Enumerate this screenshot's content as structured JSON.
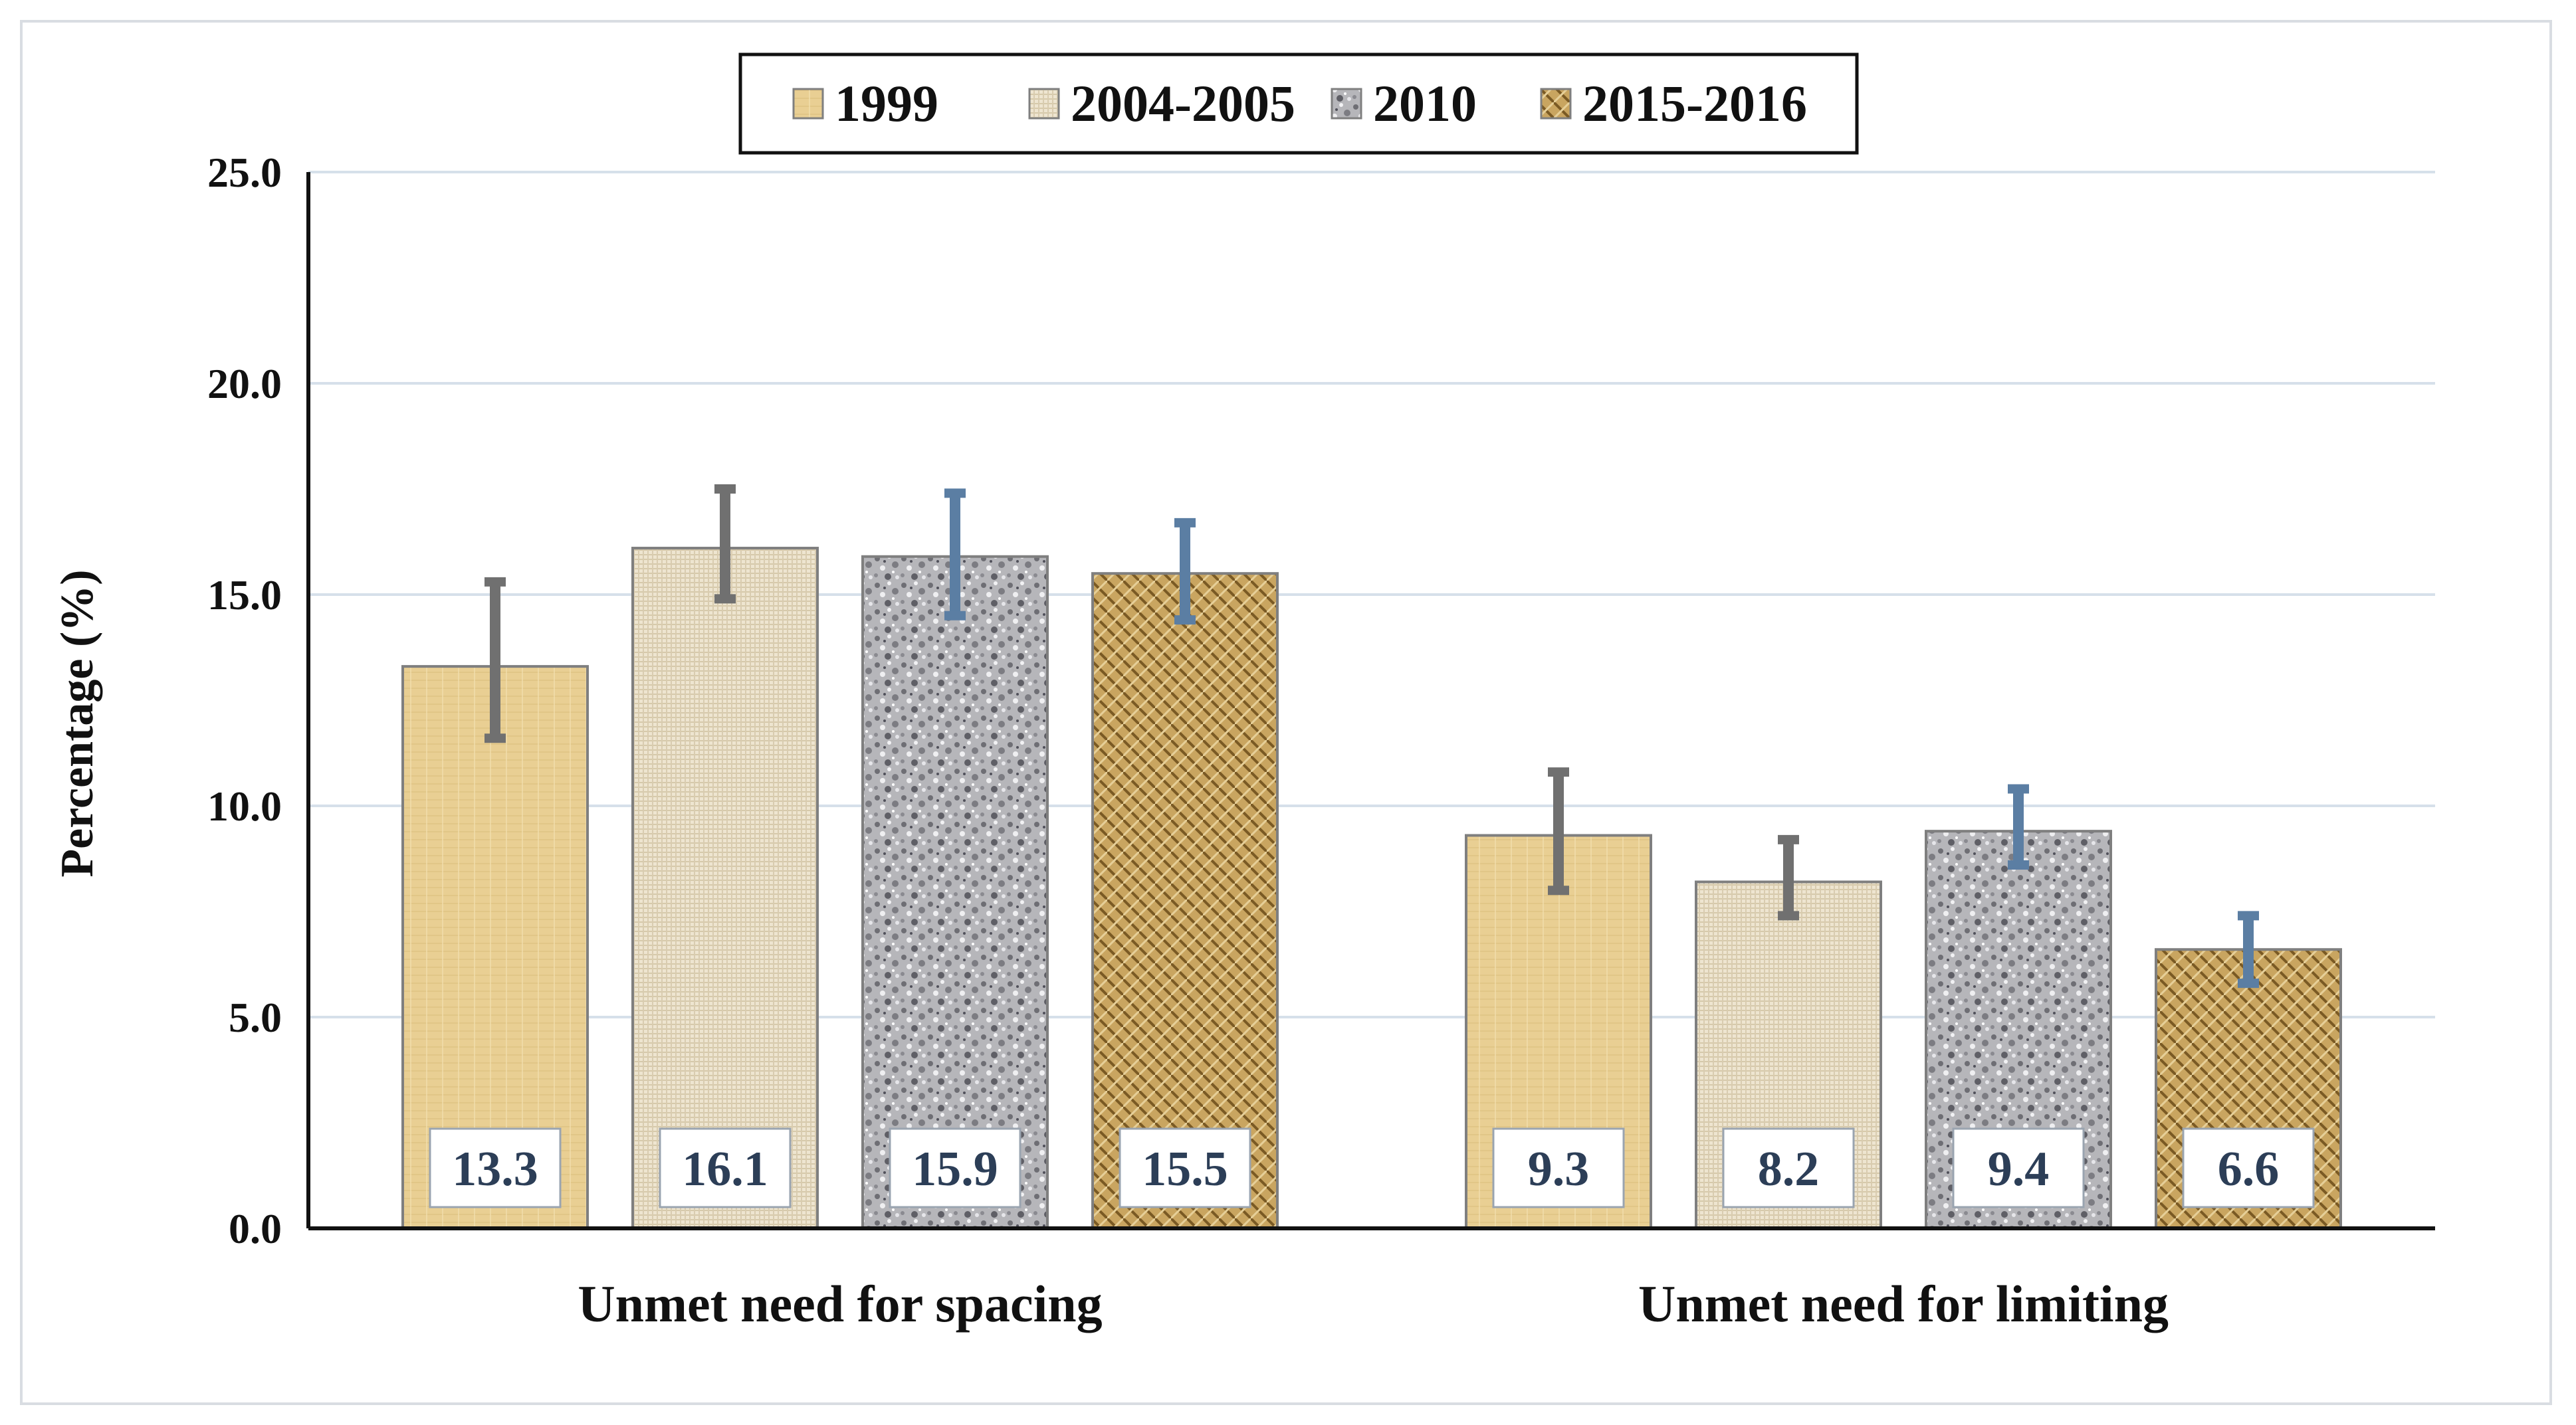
{
  "chart_data": {
    "type": "bar",
    "title": "",
    "xlabel": "",
    "ylabel": "Percentage (%)",
    "ylim": [
      0,
      25
    ],
    "yticks": [
      "0.0",
      "5.0",
      "10.0",
      "15.0",
      "20.0",
      "25.0"
    ],
    "grid": true,
    "legend_position": "top-center",
    "categories": [
      "Unmet need for spacing",
      "Unmet need for limiting"
    ],
    "series": [
      {
        "name": "1999",
        "values": [
          13.3,
          9.3
        ],
        "labels": [
          "13.3",
          "9.3"
        ],
        "error_low": [
          11.6,
          8.0
        ],
        "error_high": [
          15.3,
          10.8
        ],
        "color": "#e9cf93",
        "error_color": "#707070"
      },
      {
        "name": "2004-2005",
        "values": [
          16.1,
          8.2
        ],
        "labels": [
          "16.1",
          "8.2"
        ],
        "error_low": [
          14.9,
          7.4
        ],
        "error_high": [
          17.5,
          9.2
        ],
        "color": "#ece3cd",
        "error_color": "#707070"
      },
      {
        "name": "2010",
        "values": [
          15.9,
          9.4
        ],
        "labels": [
          "15.9",
          "9.4"
        ],
        "error_low": [
          14.5,
          8.6
        ],
        "error_high": [
          17.4,
          10.4
        ],
        "color": "#a9a9ad",
        "error_color": "#5b7ea3"
      },
      {
        "name": "2015-2016",
        "values": [
          15.5,
          6.6
        ],
        "labels": [
          "15.5",
          "6.6"
        ],
        "error_low": [
          14.4,
          5.8
        ],
        "error_high": [
          16.7,
          7.4
        ],
        "color": "#b8914c",
        "error_color": "#5b7ea3"
      }
    ]
  }
}
